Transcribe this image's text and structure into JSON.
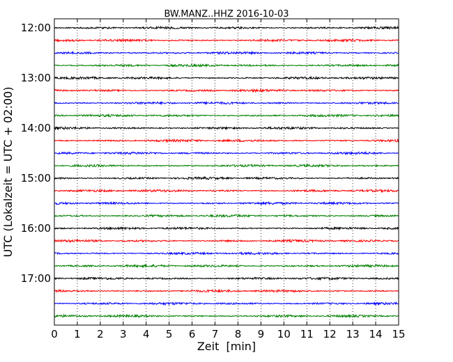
{
  "chart_data": {
    "type": "line",
    "title": "BW.MANZ..HHZ 2016-10-03",
    "xlabel": "Zeit  [min]",
    "ylabel": "UTC (Lokalzeit = UTC + 02:00)",
    "xlim": [
      0,
      15
    ],
    "x_ticks": [
      "0",
      "1",
      "2",
      "3",
      "4",
      "5",
      "6",
      "7",
      "8",
      "9",
      "10",
      "11",
      "12",
      "13",
      "14",
      "15"
    ],
    "y_ticks": [
      "12:00",
      "13:00",
      "14:00",
      "15:00",
      "16:00",
      "17:00"
    ],
    "grid": "vertical-dotted",
    "trace_interval_minutes": 15,
    "color_cycle": [
      "#000000",
      "#ff0000",
      "#0000ff",
      "#008000"
    ],
    "series": [
      {
        "start": "12:00",
        "color": "#000000"
      },
      {
        "start": "12:15",
        "color": "#ff0000"
      },
      {
        "start": "12:30",
        "color": "#0000ff"
      },
      {
        "start": "12:45",
        "color": "#008000"
      },
      {
        "start": "13:00",
        "color": "#000000"
      },
      {
        "start": "13:15",
        "color": "#ff0000"
      },
      {
        "start": "13:30",
        "color": "#0000ff"
      },
      {
        "start": "13:45",
        "color": "#008000"
      },
      {
        "start": "14:00",
        "color": "#000000"
      },
      {
        "start": "14:15",
        "color": "#ff0000"
      },
      {
        "start": "14:30",
        "color": "#0000ff"
      },
      {
        "start": "14:45",
        "color": "#008000"
      },
      {
        "start": "15:00",
        "color": "#000000"
      },
      {
        "start": "15:15",
        "color": "#ff0000"
      },
      {
        "start": "15:30",
        "color": "#0000ff"
      },
      {
        "start": "15:45",
        "color": "#008000"
      },
      {
        "start": "16:00",
        "color": "#000000"
      },
      {
        "start": "16:15",
        "color": "#ff0000"
      },
      {
        "start": "16:30",
        "color": "#0000ff"
      },
      {
        "start": "16:45",
        "color": "#008000"
      },
      {
        "start": "17:00",
        "color": "#000000"
      },
      {
        "start": "17:15",
        "color": "#ff0000"
      },
      {
        "start": "17:30",
        "color": "#0000ff"
      },
      {
        "start": "17:45",
        "color": "#008000"
      }
    ]
  }
}
